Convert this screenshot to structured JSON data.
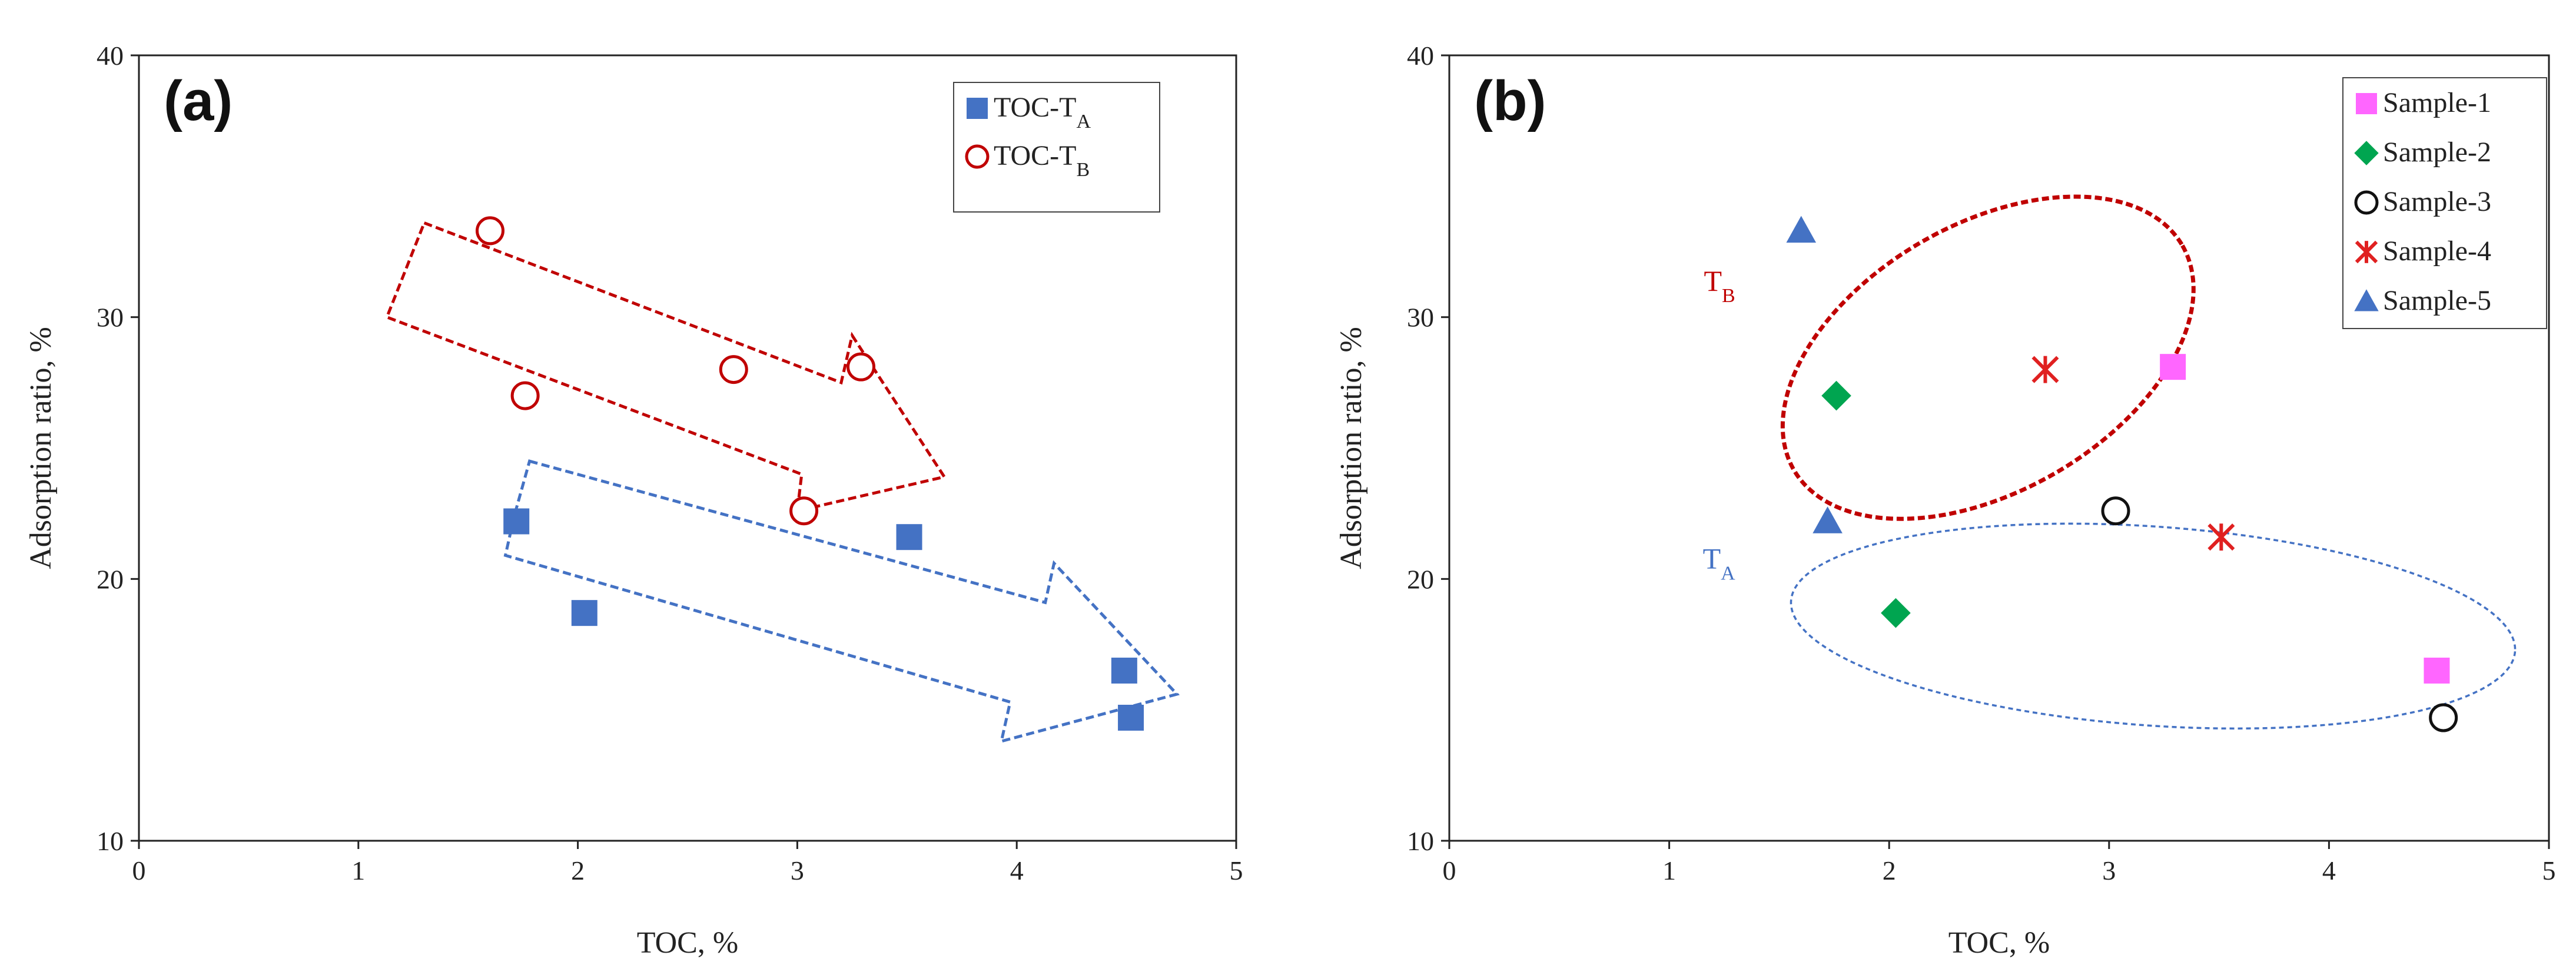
{
  "chart_data": [
    {
      "panel": "(a)",
      "type": "scatter",
      "xlabel": "TOC, %",
      "ylabel": "Adsorption ratio, %",
      "xlim": [
        0,
        5
      ],
      "ylim": [
        10,
        40
      ],
      "xticks": [
        0,
        1,
        2,
        3,
        4,
        5
      ],
      "yticks": [
        10,
        20,
        30,
        40
      ],
      "legend_placement": "top-right",
      "series": [
        {
          "name": "TOC-T",
          "subscript": "A",
          "marker": "filled-square",
          "color": "#4472C4",
          "points": [
            [
              1.72,
              22.2
            ],
            [
              2.03,
              18.7
            ],
            [
              3.51,
              21.6
            ],
            [
              4.49,
              16.5
            ],
            [
              4.52,
              14.7
            ]
          ]
        },
        {
          "name": "TOC-T",
          "subscript": "B",
          "marker": "open-circle",
          "color": "#C00000",
          "points": [
            [
              1.6,
              33.3
            ],
            [
              1.76,
              27.0
            ],
            [
              2.71,
              28.0
            ],
            [
              3.03,
              22.6
            ],
            [
              3.29,
              28.1
            ]
          ]
        }
      ],
      "annotations": [
        {
          "kind": "arrow",
          "color": "#C00000",
          "polygon": [
            [
              1.3,
              33.6
            ],
            [
              3.2,
              27.5
            ],
            [
              3.25,
              29.3
            ],
            [
              3.67,
              23.9
            ],
            [
              3.0,
              22.6
            ],
            [
              3.02,
              24.0
            ],
            [
              1.13,
              30.0
            ]
          ]
        },
        {
          "kind": "arrow",
          "color": "#4472C4",
          "polygon": [
            [
              1.78,
              24.5
            ],
            [
              4.13,
              19.1
            ],
            [
              4.17,
              20.6
            ],
            [
              4.73,
              15.6
            ],
            [
              3.93,
              13.8
            ],
            [
              3.97,
              15.3
            ],
            [
              1.67,
              20.9
            ],
            [
              1.71,
              22.4
            ]
          ]
        }
      ]
    },
    {
      "panel": "(b)",
      "type": "scatter",
      "xlabel": "TOC, %",
      "ylabel": "Adsorption ratio, %",
      "xlim": [
        0,
        5
      ],
      "ylim": [
        10,
        40
      ],
      "xticks": [
        0,
        1,
        2,
        3,
        4,
        5
      ],
      "yticks": [
        10,
        20,
        30,
        40
      ],
      "legend_placement": "top-right",
      "series": [
        {
          "name": "Sample-1",
          "marker": "filled-square",
          "color": "#FF66FF",
          "points": [
            [
              3.29,
              28.1
            ],
            [
              4.49,
              16.5
            ]
          ]
        },
        {
          "name": "Sample-2",
          "marker": "filled-diamond",
          "color": "#00A550",
          "points": [
            [
              1.76,
              27.0
            ],
            [
              2.03,
              18.7
            ]
          ]
        },
        {
          "name": "Sample-3",
          "marker": "open-circle",
          "color": "#111111",
          "points": [
            [
              3.03,
              22.6
            ],
            [
              4.52,
              14.7
            ]
          ]
        },
        {
          "name": "Sample-4",
          "marker": "star-cross",
          "color": "#E02020",
          "points": [
            [
              2.71,
              28.0
            ],
            [
              3.51,
              21.6
            ]
          ]
        },
        {
          "name": "Sample-5",
          "marker": "filled-triangle",
          "color": "#4472C4",
          "points": [
            [
              1.6,
              33.3
            ],
            [
              1.72,
              22.2
            ]
          ]
        }
      ],
      "annotations": [
        {
          "kind": "ellipse",
          "label": "T",
          "subscript": "B",
          "color": "#C00000",
          "center": [
            2.45,
            28.45
          ],
          "rx": 1.02,
          "ry": 5.1,
          "rotation": 30,
          "label_at": [
            1.3,
            31.0
          ]
        },
        {
          "kind": "ellipse",
          "label": "T",
          "subscript": "A",
          "color": "#4472C4",
          "center": [
            3.2,
            18.2
          ],
          "rx": 1.65,
          "ry": 3.8,
          "rotation": -4,
          "label_at": [
            1.3,
            20.4
          ]
        }
      ]
    }
  ]
}
